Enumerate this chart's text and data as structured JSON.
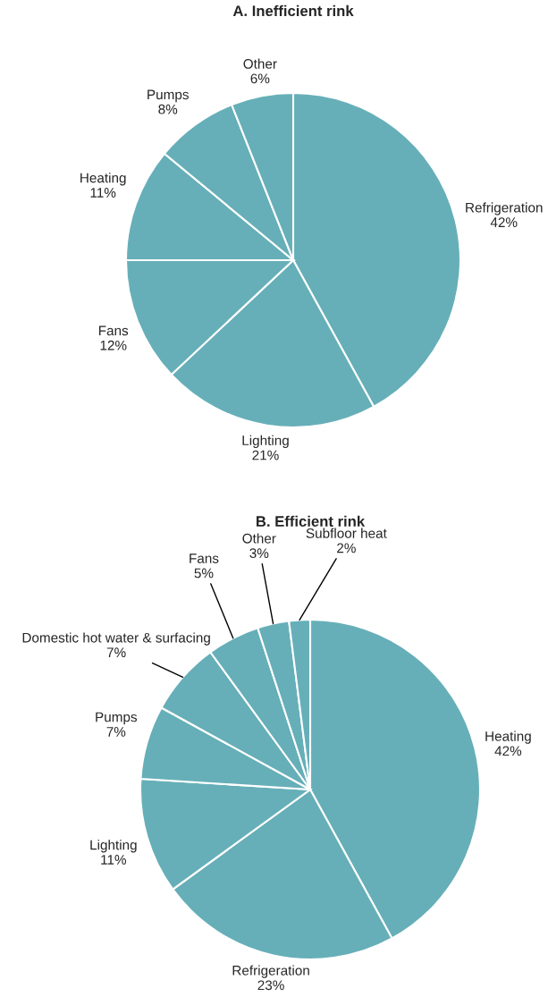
{
  "chart_data": [
    {
      "type": "pie",
      "title": "A. Inefficient rink",
      "categories": [
        "Refrigeration",
        "Lighting",
        "Fans",
        "Heating",
        "Pumps",
        "Other"
      ],
      "values": [
        42,
        21,
        12,
        11,
        8,
        6
      ],
      "value_labels": [
        "42%",
        "21%",
        "12%",
        "11%",
        "8%",
        "6%"
      ],
      "colors": [
        "#66afb8",
        "#66afb8",
        "#66afb8",
        "#66afb8",
        "#66afb8",
        "#66afb8"
      ]
    },
    {
      "type": "pie",
      "title": "B. Efficient rink",
      "categories": [
        "Heating",
        "Refrigeration",
        "Lighting",
        "Pumps",
        "Domestic hot water & surfacing",
        "Fans",
        "Other",
        "Subfloor heat"
      ],
      "values": [
        42,
        23,
        11,
        7,
        7,
        5,
        3,
        2
      ],
      "value_labels": [
        "42%",
        "23%",
        "11%",
        "7%",
        "7%",
        "5%",
        "3%",
        "2%"
      ],
      "colors": [
        "#66afb8",
        "#66afb8",
        "#66afb8",
        "#66afb8",
        "#66afb8",
        "#66afb8",
        "#66afb8",
        "#66afb8"
      ]
    }
  ]
}
